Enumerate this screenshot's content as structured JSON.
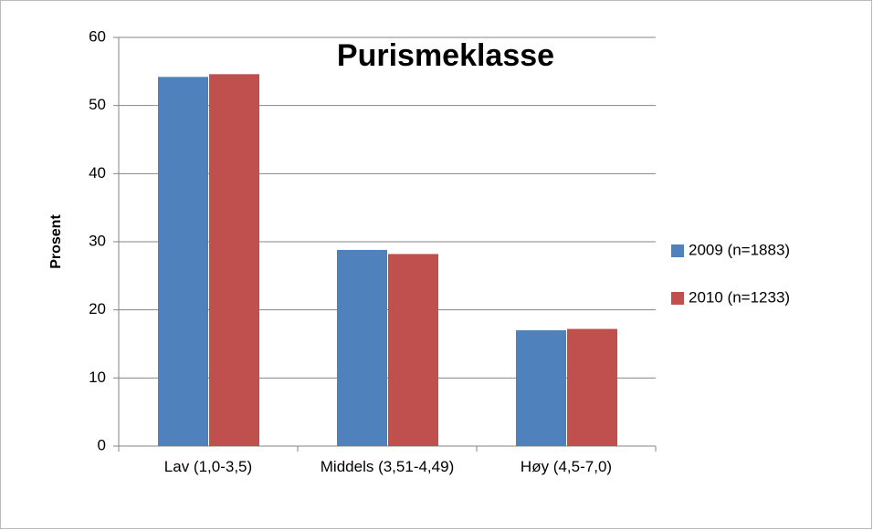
{
  "chart_data": {
    "type": "bar",
    "title": "Purismeklasse",
    "y_label": "Prosent",
    "categories": [
      "Lav (1,0-3,5)",
      "Middels (3,51-4,49)",
      "Høy (4,5-7,0)"
    ],
    "series": [
      {
        "name": "2009 (n=1883)",
        "color": "#4f81bd",
        "values": [
          54.2,
          28.8,
          17.0
        ]
      },
      {
        "name": "2010 (n=1233)",
        "color": "#c0504d",
        "values": [
          54.6,
          28.2,
          17.2
        ]
      }
    ],
    "ylim": [
      0,
      60
    ],
    "yticks": [
      0,
      10,
      20,
      30,
      40,
      50,
      60
    ],
    "grid": true,
    "legend": "right"
  }
}
